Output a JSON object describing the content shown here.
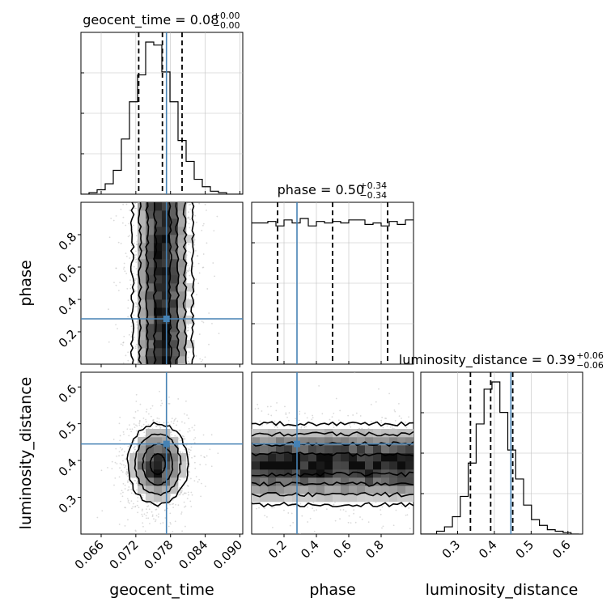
{
  "chart_data": {
    "type": "corner",
    "parameters": [
      "geocent_time",
      "phase",
      "luminosity_distance"
    ],
    "colors": {
      "truth": "#4682b4",
      "hist": "#000000",
      "quantile": "#000000",
      "grid": "#c0c0c0",
      "scatter": "#bbbbbb"
    },
    "diag_titles": {
      "geocent_time": {
        "label": "geocent_time = 0.08",
        "upper": "+0.00",
        "lower": "−0.00"
      },
      "phase": {
        "label": "phase = 0.50",
        "upper": "+0.34",
        "lower": "−0.34"
      },
      "luminosity_distance": {
        "label": "luminosity_distance = 0.39",
        "upper": "+0.06",
        "lower": "−0.06"
      }
    },
    "axis_labels": {
      "x": [
        "geocent_time",
        "phase",
        "luminosity_distance"
      ],
      "y": [
        "phase",
        "luminosity_distance"
      ]
    },
    "ranges": {
      "geocent_time": [
        0.0625,
        0.0905
      ],
      "phase": [
        0.0,
        1.0
      ],
      "luminosity_distance": [
        0.2,
        0.64
      ]
    },
    "ticks": {
      "geocent_time": [
        "0.066",
        "0.072",
        "0.078",
        "0.084",
        "0.090"
      ],
      "phase_x": [
        "0.2",
        "0.4",
        "0.6",
        "0.8"
      ],
      "phase_y": [
        "0.2",
        "0.4",
        "0.6",
        "0.8"
      ],
      "luminosity_distance_x": [
        "0.3",
        "0.4",
        "0.5",
        "0.6"
      ],
      "luminosity_distance_y": [
        "0.3",
        "0.4",
        "0.5",
        "0.6"
      ]
    },
    "truths": {
      "geocent_time": 0.0773,
      "phase": 0.28,
      "luminosity_distance": 0.445
    },
    "quantiles": {
      "geocent_time": [
        0.0725,
        0.0766,
        0.08
      ],
      "phase": [
        0.16,
        0.5,
        0.84
      ],
      "luminosity_distance": [
        0.335,
        0.39,
        0.45
      ]
    },
    "histograms": {
      "geocent_time": {
        "edges_start": 0.0625,
        "bin_width": 0.0014,
        "counts": [
          0,
          1,
          3,
          7,
          16,
          37,
          62,
          80,
          102,
          100,
          82,
          62,
          36,
          22,
          10,
          5,
          2,
          1,
          0,
          0
        ]
      },
      "phase": {
        "edges_start": 0.0,
        "bin_width": 0.05,
        "counts": [
          95,
          95,
          96,
          93,
          97,
          95,
          98,
          93,
          96,
          95,
          96,
          95,
          97,
          97,
          94,
          95,
          93,
          96,
          94,
          97
        ]
      },
      "luminosity_distance": {
        "edges_start": 0.2,
        "bin_width": 0.0215,
        "counts": [
          0,
          0,
          2,
          5,
          12,
          26,
          49,
          76,
          100,
          105,
          84,
          58,
          38,
          20,
          10,
          6,
          3,
          2,
          1,
          0
        ]
      }
    },
    "joint": {
      "geocent_time__phase": {
        "cx": 0.0766,
        "cy": 0.5,
        "sx": 0.0026,
        "sy": 0.29
      },
      "geocent_time__luminosity_distance": {
        "cx": 0.0758,
        "cy": 0.39,
        "sx": 0.0026,
        "sy": 0.055
      },
      "phase__luminosity_distance": {
        "cx": 0.5,
        "cy": 0.39,
        "sx": 0.29,
        "sy": 0.055
      }
    }
  }
}
